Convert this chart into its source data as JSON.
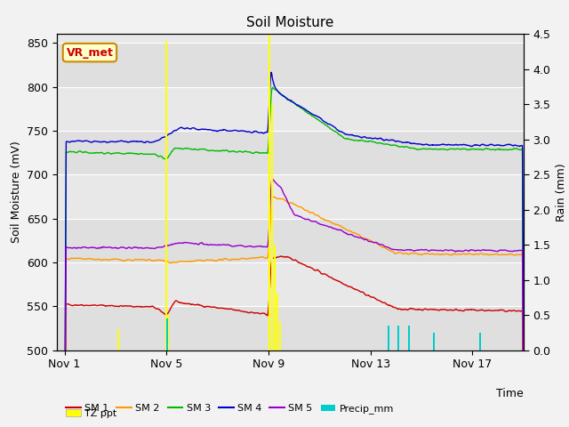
{
  "title": "Soil Moisture",
  "ylabel_left": "Soil Moisture (mV)",
  "ylabel_right": "Rain (mm)",
  "xlabel": "Time",
  "ylim_left": [
    500,
    860
  ],
  "ylim_right": [
    0.0,
    4.5
  ],
  "yticks_left": [
    500,
    550,
    600,
    650,
    700,
    750,
    800,
    850
  ],
  "yticks_right": [
    0.0,
    0.5,
    1.0,
    1.5,
    2.0,
    2.5,
    3.0,
    3.5,
    4.0,
    4.5
  ],
  "xlim": [
    -0.3,
    18.0
  ],
  "xtick_positions": [
    0,
    4,
    8,
    12,
    16
  ],
  "xtick_labels": [
    "Nov 1",
    "Nov 5",
    "Nov 9",
    "Nov 13",
    "Nov 17"
  ],
  "bg_color": "#f2f2f2",
  "plot_bg_color": "#e8e8e8",
  "stripe_color": "#d8d8d8",
  "annotation_label": "VR_met",
  "annotation_color": "#cc0000",
  "annotation_bg": "#ffffcc",
  "annotation_border": "#cc8800",
  "sm1_color": "#cc0000",
  "sm2_color": "#ff9900",
  "sm3_color": "#00bb00",
  "sm4_color": "#0000cc",
  "sm5_color": "#9900cc",
  "precip_color": "#00cccc",
  "tz_color": "#ffff00",
  "tz_times": [
    2.1,
    4.0,
    4.05,
    8.05,
    8.15,
    8.25,
    8.35,
    8.45
  ],
  "tz_heights": [
    0.3,
    4.4,
    0.5,
    4.5,
    3.5,
    1.5,
    0.8,
    0.4
  ],
  "precip_times": [
    4.02,
    12.7,
    13.1,
    13.5,
    14.5,
    16.3
  ],
  "precip_heights": [
    0.45,
    0.35,
    0.35,
    0.35,
    0.25,
    0.25
  ],
  "bar_width": 0.07
}
